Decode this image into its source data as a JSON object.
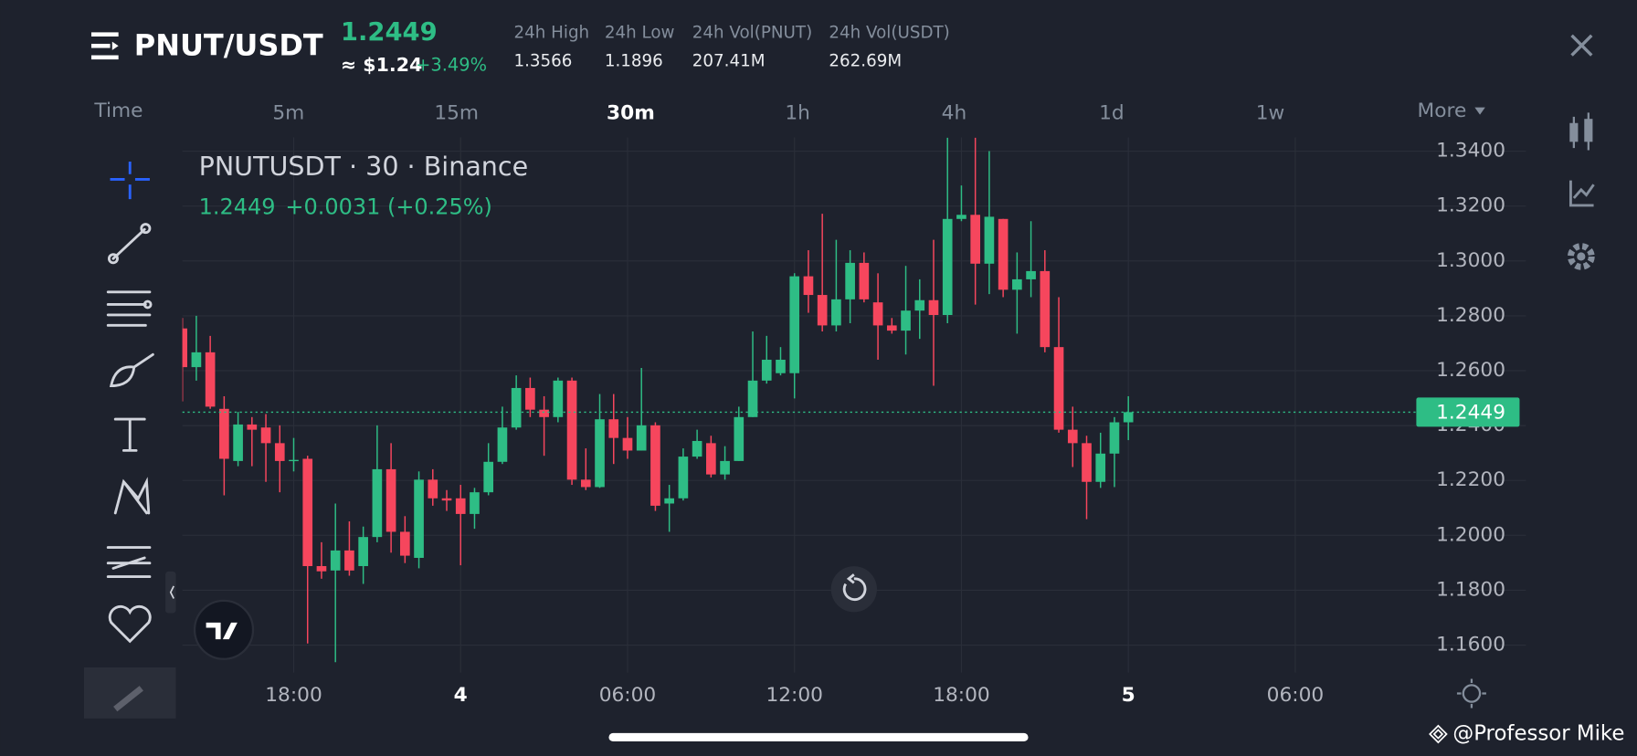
{
  "header": {
    "pair": "PNUT/USDT",
    "last": "1.2449",
    "usd": "≈ $1.24",
    "change": "+3.49%",
    "stats": [
      {
        "label": "24h High",
        "value": "1.3566"
      },
      {
        "label": "24h Low",
        "value": "1.1896"
      },
      {
        "label": "24h Vol(PNUT)",
        "value": "207.41M"
      },
      {
        "label": "24h Vol(USDT)",
        "value": "262.69M"
      }
    ]
  },
  "intervals": [
    "Time",
    "5m",
    "15m",
    "30m",
    "1h",
    "4h",
    "1d",
    "1w",
    "More"
  ],
  "chart_data": {
    "type": "candlestick",
    "title": "PNUTUSDT · 30 · Binance",
    "legend": [
      "1.2449",
      "+0.0031 (+0.25%)"
    ],
    "up_color": "#2ebd85",
    "down_color": "#f6465d",
    "open": [
      1.2754,
      1.2613,
      1.2667,
      1.2461,
      1.2271,
      1.2404,
      1.2393,
      1.2336,
      1.2271,
      1.2279,
      1.1888,
      1.1872,
      1.1945,
      1.1888,
      1.1994,
      1.2241,
      1.2013,
      1.1918,
      1.2203,
      1.2135,
      1.2135,
      1.2078,
      1.2157,
      1.2268,
      1.2393,
      1.2537,
      1.2458,
      1.2431,
      1.2564,
      1.2203,
      1.2176,
      1.2423,
      1.2355,
      1.2309,
      1.2401,
      1.2116,
      1.2135,
      1.2287,
      1.2336,
      1.2222,
      1.2271,
      1.2431,
      1.2564,
      1.2591,
      1.2591,
      1.2944,
      1.2876,
      1.2765,
      1.286,
      1.2993,
      1.2849,
      1.2765,
      1.2746,
      1.2819,
      1.2857,
      1.2803,
      1.3153,
      1.3168,
      1.299,
      1.3153,
      1.2895,
      1.2933,
      1.2963,
      1.2686,
      1.2385,
      1.2336,
      1.2195,
      1.2298,
      1.2412
    ],
    "high": [
      1.2792,
      1.28,
      1.2727,
      1.2507,
      1.245,
      1.2431,
      1.2442,
      1.2401,
      1.2355,
      1.229,
      1.1975,
      1.2116,
      1.2051,
      1.2032,
      1.2401,
      1.2336,
      1.207,
      1.2233,
      1.2241,
      1.2165,
      1.2184,
      1.2173,
      1.2336,
      1.2469,
      1.2583,
      1.2575,
      1.2507,
      1.2575,
      1.2575,
      1.2317,
      1.2515,
      1.2515,
      1.2431,
      1.261,
      1.2412,
      1.2184,
      1.2317,
      1.2385,
      1.2363,
      1.2325,
      1.2469,
      1.2743,
      1.2727,
      1.2686,
      1.2955,
      1.3039,
      1.3172,
      1.3077,
      1.3039,
      1.3031,
      1.2955,
      1.2792,
      1.2982,
      1.2933,
      1.3077,
      1.3449,
      1.3275,
      1.3449,
      1.34,
      1.3153,
      1.3031,
      1.3145,
      1.3039,
      1.2868,
      1.2469,
      1.2363,
      1.2374,
      1.2431,
      1.2507
    ],
    "low": [
      1.2488,
      1.2564,
      1.2461,
      1.2146,
      1.2252,
      1.2252,
      1.2195,
      1.2157,
      1.2233,
      1.1606,
      1.1842,
      1.1538,
      1.1853,
      1.1823,
      1.1975,
      1.1937,
      1.1899,
      1.188,
      1.2108,
      1.2089,
      1.1891,
      1.2024,
      1.2146,
      1.226,
      1.2385,
      1.2431,
      1.229,
      1.2412,
      1.2184,
      1.2165,
      1.2173,
      1.226,
      1.2279,
      1.2309,
      1.2089,
      1.2013,
      1.2127,
      1.2279,
      1.2211,
      1.2203,
      1.2271,
      1.2431,
      1.2553,
      1.2583,
      1.2499,
      1.2811,
      1.2743,
      1.2743,
      1.2773,
      1.2849,
      1.264,
      1.2735,
      1.2659,
      1.2716,
      1.2545,
      1.2773,
      1.3145,
      1.2841,
      1.2879,
      1.2868,
      1.2735,
      1.2868,
      1.2667,
      1.2374,
      1.2249,
      1.2059,
      1.2173,
      1.2176,
      1.2347
    ],
    "close": [
      1.2613,
      1.2667,
      1.2469,
      1.2279,
      1.2404,
      1.2385,
      1.2336,
      1.2271,
      1.2275,
      1.1888,
      1.1869,
      1.1945,
      1.1872,
      1.1994,
      1.2241,
      1.2013,
      1.1926,
      1.2203,
      1.2135,
      1.2127,
      1.2078,
      1.2157,
      1.2268,
      1.2393,
      1.2537,
      1.2458,
      1.2431,
      1.2564,
      1.2203,
      1.2176,
      1.2423,
      1.2355,
      1.2309,
      1.2401,
      1.2108,
      1.2135,
      1.2287,
      1.2344,
      1.2222,
      1.2271,
      1.2431,
      1.2564,
      1.264,
      1.264,
      1.2944,
      1.2876,
      1.2765,
      1.286,
      1.2993,
      1.286,
      1.2765,
      1.2746,
      1.2819,
      1.2857,
      1.2803,
      1.3153,
      1.3168,
      1.299,
      1.3161,
      1.2895,
      1.2933,
      1.2963,
      1.2686,
      1.2385,
      1.2336,
      1.2195,
      1.2298,
      1.2412,
      1.2449
    ],
    "ylim": [
      1.15,
      1.345
    ],
    "yticks": [
      {
        "value": 1.16,
        "label": "1.1600"
      },
      {
        "value": 1.18,
        "label": "1.1800"
      },
      {
        "value": 1.2,
        "label": "1.2000"
      },
      {
        "value": 1.22,
        "label": "1.2200"
      },
      {
        "value": 1.24,
        "label": "1.2400"
      },
      {
        "value": 1.26,
        "label": "1.2600"
      },
      {
        "value": 1.28,
        "label": "1.2800"
      },
      {
        "value": 1.3,
        "label": "1.3000"
      },
      {
        "value": 1.32,
        "label": "1.3200"
      },
      {
        "value": 1.34,
        "label": "1.3400"
      }
    ],
    "xlim": [
      0,
      88.7
    ],
    "xticks": [
      {
        "value": 8,
        "label": "18:00"
      },
      {
        "value": 20,
        "label": "4"
      },
      {
        "value": 32,
        "label": "06:00"
      },
      {
        "value": 44,
        "label": "12:00"
      },
      {
        "value": 56,
        "label": "18:00"
      },
      {
        "value": 68,
        "label": "5"
      },
      {
        "value": 80,
        "label": "06:00"
      }
    ],
    "grid": true,
    "last_price": {
      "value": 1.2449,
      "label": "1.2449"
    }
  },
  "watermark": "@Professor Mike"
}
